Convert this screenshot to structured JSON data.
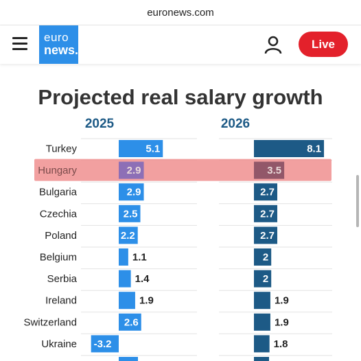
{
  "browser": {
    "url": "euronews.com"
  },
  "header": {
    "logo_line1": "euro",
    "logo_line2": "news.",
    "live_label": "Live"
  },
  "colors": {
    "bar_2025": "#2d8fe8",
    "bar_2026": "#1d5a86",
    "highlight": "#f08f8f",
    "highlight_bar_2025": "#8d6fb6",
    "highlight_bar_2026": "#925769",
    "title": "#333333",
    "year_label": "#1d5a86",
    "live": "#e3212b"
  },
  "chart_data": {
    "type": "bar",
    "orientation": "horizontal",
    "title": "Projected real salary growth",
    "highlight_category": "Hungary",
    "categories": [
      "Turkey",
      "Hungary",
      "Bulgaria",
      "Czechia",
      "Poland",
      "Belgium",
      "Serbia",
      "Ireland",
      "Switzerland",
      "Ukraine"
    ],
    "series": [
      {
        "name": "2025",
        "values": [
          5.1,
          2.9,
          2.9,
          2.5,
          2.2,
          1.1,
          1.4,
          1.9,
          2.6,
          -3.2
        ]
      },
      {
        "name": "2026",
        "values": [
          8.1,
          3.5,
          2.7,
          2.7,
          2.7,
          2.0,
          2.0,
          1.9,
          1.9,
          1.8
        ]
      }
    ],
    "value_labels": [
      [
        "5.1",
        "2.9",
        "2.9",
        "2.5",
        "2.2",
        "1.1",
        "1.4",
        "1.9",
        "2.6",
        "-3.2"
      ],
      [
        "8.1",
        "3.5",
        "2.7",
        "2.7",
        "2.7",
        "2",
        "2",
        "1.9",
        "1.9",
        "1.8"
      ]
    ],
    "grid": true,
    "legend": "none"
  }
}
